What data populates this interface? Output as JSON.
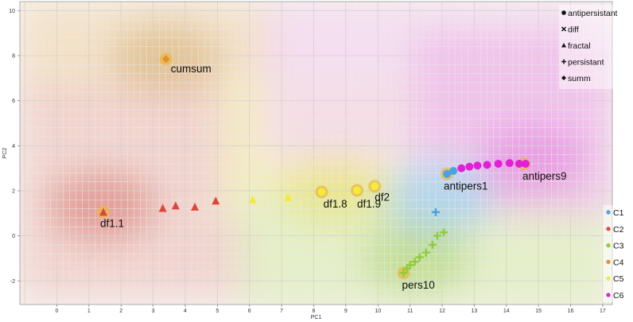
{
  "chart_data": {
    "type": "scatter",
    "xlabel": "PC1",
    "ylabel": "PC2",
    "xlim": [
      -1.15,
      17.3
    ],
    "ylim": [
      -3.05,
      10.4
    ],
    "xticks": [
      "0",
      "1",
      "2",
      "3",
      "4",
      "5",
      "6",
      "7",
      "8",
      "9",
      "10",
      "11",
      "12",
      "13",
      "14",
      "15",
      "16",
      "17"
    ],
    "yticks": [
      "-2",
      "0",
      "2",
      "4",
      "6",
      "8",
      "10"
    ],
    "grid": true,
    "shape_legend": {
      "placement": "top-right",
      "entries": [
        {
          "label": "antipersistant",
          "shape": "circle"
        },
        {
          "label": "diff",
          "shape": "cross"
        },
        {
          "label": "fractal",
          "shape": "triangle"
        },
        {
          "label": "persistant",
          "shape": "plus"
        },
        {
          "label": "summ",
          "shape": "diamond"
        }
      ]
    },
    "color_legend": {
      "placement": "bottom-right",
      "entries": [
        {
          "label": "C1",
          "color": "#4aa3df"
        },
        {
          "label": "C2",
          "color": "#e0453a"
        },
        {
          "label": "C3",
          "color": "#8fcc3c"
        },
        {
          "label": "C4",
          "color": "#e58f2f"
        },
        {
          "label": "C5",
          "color": "#f4ea3c"
        },
        {
          "label": "C6",
          "color": "#e21fd6"
        }
      ]
    },
    "regions": [
      {
        "cluster": "C4",
        "center": [
          3.4,
          7.9
        ],
        "color": "#c9933c"
      },
      {
        "cluster": "C2",
        "center": [
          1.4,
          1.3
        ],
        "color": "#cc3b33"
      },
      {
        "cluster": "C5",
        "center": [
          8.6,
          2.0
        ],
        "color": "#e4d832"
      },
      {
        "cluster": "C3",
        "center": [
          11.2,
          -1.0
        ],
        "color": "#86c23a"
      },
      {
        "cluster": "C1",
        "center": [
          11.9,
          1.6
        ],
        "color": "#6fb7e4"
      },
      {
        "cluster": "C6",
        "center": [
          14.8,
          3.4
        ],
        "color": "#dd55d8"
      }
    ],
    "series": [
      {
        "shape": "diamond",
        "cluster": "C4",
        "x": [
          3.4
        ],
        "y": [
          7.85
        ]
      },
      {
        "shape": "triangle",
        "cluster": "C2",
        "x": [
          1.45,
          3.3,
          3.7,
          4.3,
          4.95
        ],
        "y": [
          1.05,
          1.22,
          1.33,
          1.28,
          1.55
        ]
      },
      {
        "shape": "triangle",
        "cluster": "C5",
        "x": [
          6.1,
          7.2
        ],
        "y": [
          1.6,
          1.7
        ]
      },
      {
        "shape": "circle",
        "cluster": "C5",
        "x": [
          8.25,
          9.35,
          9.9
        ],
        "y": [
          1.95,
          2.02,
          2.2
        ]
      },
      {
        "shape": "circle",
        "cluster": "C1",
        "x": [
          12.15,
          12.35
        ],
        "y": [
          2.75,
          2.88
        ]
      },
      {
        "shape": "circle",
        "cluster": "C6",
        "x": [
          12.6,
          12.85,
          13.1,
          13.4,
          13.75,
          14.1,
          14.4,
          14.6
        ],
        "y": [
          3.0,
          3.07,
          3.12,
          3.15,
          3.2,
          3.23,
          3.2,
          3.2
        ]
      },
      {
        "shape": "plus",
        "cluster": "C1",
        "x": [
          11.8
        ],
        "y": [
          1.05
        ]
      },
      {
        "shape": "plus",
        "cluster": "C3",
        "x": [
          10.8,
          10.9,
          11.0,
          11.15,
          11.3,
          11.5,
          11.7,
          11.85,
          12.05
        ],
        "y": [
          -1.65,
          -1.45,
          -1.3,
          -1.15,
          -0.95,
          -0.75,
          -0.4,
          0.0,
          0.15
        ]
      }
    ],
    "highlights": [
      {
        "x": 3.4,
        "y": 7.85,
        "label": "cumsum",
        "label_x": 3.55,
        "label_y": 7.25
      },
      {
        "x": 1.45,
        "y": 1.05,
        "label": "df1.1",
        "label_x": 1.35,
        "label_y": 0.4
      },
      {
        "x": 8.25,
        "y": 1.95,
        "label": "df1.8",
        "label_x": 8.3,
        "label_y": 1.25
      },
      {
        "x": 9.35,
        "y": 2.02,
        "label": "df1.9",
        "label_x": 9.35,
        "label_y": 1.25
      },
      {
        "x": 9.9,
        "y": 2.2,
        "label": "df2",
        "label_x": 9.9,
        "label_y": 1.55
      },
      {
        "x": 12.15,
        "y": 2.75,
        "label": "antipers1",
        "label_x": 12.05,
        "label_y": 2.05
      },
      {
        "x": 14.55,
        "y": 3.2,
        "label": "antipers9",
        "label_x": 14.5,
        "label_y": 2.5
      },
      {
        "x": 10.8,
        "y": -1.65,
        "label": "pers10",
        "label_x": 10.75,
        "label_y": -2.35
      }
    ]
  }
}
